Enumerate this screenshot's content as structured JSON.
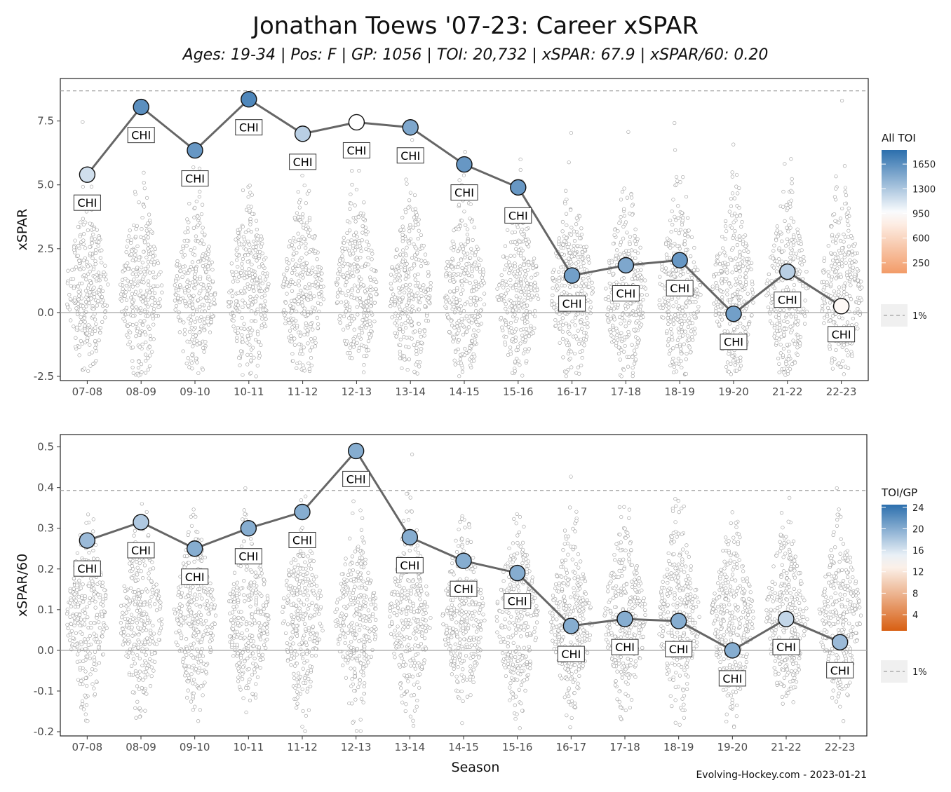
{
  "title": "Jonathan Toews '07-23: Career xSPAR",
  "subtitle": "Ages: 19-34 | Pos: F | GP: 1056 | TOI: 20,732 | xSPAR: 67.9 | xSPAR/60: 0.20",
  "source": "Evolving-Hockey.com - 2023-01-21",
  "xlabel": "Season",
  "colors": {
    "line": "#666666",
    "blue": "#2c6fad",
    "light": "#c9d7ec",
    "white": "#ffffff",
    "orange": "#f29b68",
    "dark_orange": "#d85f12"
  },
  "chart_data": [
    {
      "type": "line",
      "ylabel": "xSPAR",
      "categories": [
        "07-08",
        "08-09",
        "09-10",
        "10-11",
        "11-12",
        "12-13",
        "13-14",
        "14-15",
        "15-16",
        "16-17",
        "17-18",
        "18-19",
        "19-20",
        "21-22",
        "22-23"
      ],
      "series": [
        {
          "values": [
            5.4,
            8.05,
            6.35,
            8.35,
            7.0,
            7.45,
            7.25,
            5.8,
            4.9,
            1.45,
            1.85,
            2.05,
            -0.05,
            1.6,
            0.25
          ]
        }
      ],
      "point_labels": [
        "CHI",
        "CHI",
        "CHI",
        "CHI",
        "CHI",
        "CHI",
        "CHI",
        "CHI",
        "CHI",
        "CHI",
        "CHI",
        "CHI",
        "CHI",
        "CHI",
        "CHI"
      ],
      "point_color_values": [
        1150,
        1650,
        1600,
        1700,
        1250,
        950,
        1500,
        1600,
        1600,
        1550,
        1500,
        1600,
        1550,
        1250,
        900
      ],
      "yticks": [
        "-2.5",
        "0.0",
        "2.5",
        "5.0",
        "7.5"
      ],
      "ylim": [
        -2.5,
        9.0
      ],
      "reference_line": 8.68,
      "zero_line": 0,
      "grid": false,
      "legend": {
        "title": "All TOI",
        "placement": "right",
        "ticks": [
          "1650",
          "1300",
          "950",
          "600",
          "250"
        ],
        "tick_values": [
          1650,
          1300,
          950,
          600,
          250
        ],
        "range": [
          100,
          1850
        ],
        "line_label": "1%"
      }
    },
    {
      "type": "line",
      "ylabel": "xSPAR/60",
      "categories": [
        "07-08",
        "08-09",
        "09-10",
        "10-11",
        "11-12",
        "12-13",
        "13-14",
        "14-15",
        "15-16",
        "16-17",
        "17-18",
        "18-19",
        "19-20",
        "21-22",
        "22-23"
      ],
      "series": [
        {
          "values": [
            0.27,
            0.315,
            0.25,
            0.3,
            0.34,
            0.49,
            0.278,
            0.22,
            0.19,
            0.06,
            0.077,
            0.072,
            0.0,
            0.077,
            0.02
          ]
        }
      ],
      "point_labels": [
        "CHI",
        "CHI",
        "CHI",
        "CHI",
        "CHI",
        "CHI",
        "CHI",
        "CHI",
        "CHI",
        "CHI",
        "CHI",
        "CHI",
        "CHI",
        "CHI",
        "CHI"
      ],
      "point_color_values": [
        19,
        18,
        20,
        20,
        20,
        20,
        20,
        20,
        20,
        20,
        20,
        20,
        20,
        17,
        19
      ],
      "yticks": [
        "-0.2",
        "-0.1",
        "0.0",
        "0.1",
        "0.2",
        "0.3",
        "0.4",
        "0.5"
      ],
      "ylim": [
        -0.2,
        0.52
      ],
      "reference_line": 0.393,
      "zero_line": 0,
      "grid": false,
      "legend": {
        "title": "TOI/GP",
        "placement": "right",
        "ticks": [
          "24",
          "20",
          "16",
          "12",
          "8",
          "4"
        ],
        "tick_values": [
          24,
          20,
          16,
          12,
          8,
          4
        ],
        "range": [
          1,
          24.5
        ],
        "line_label": "1%"
      }
    }
  ]
}
